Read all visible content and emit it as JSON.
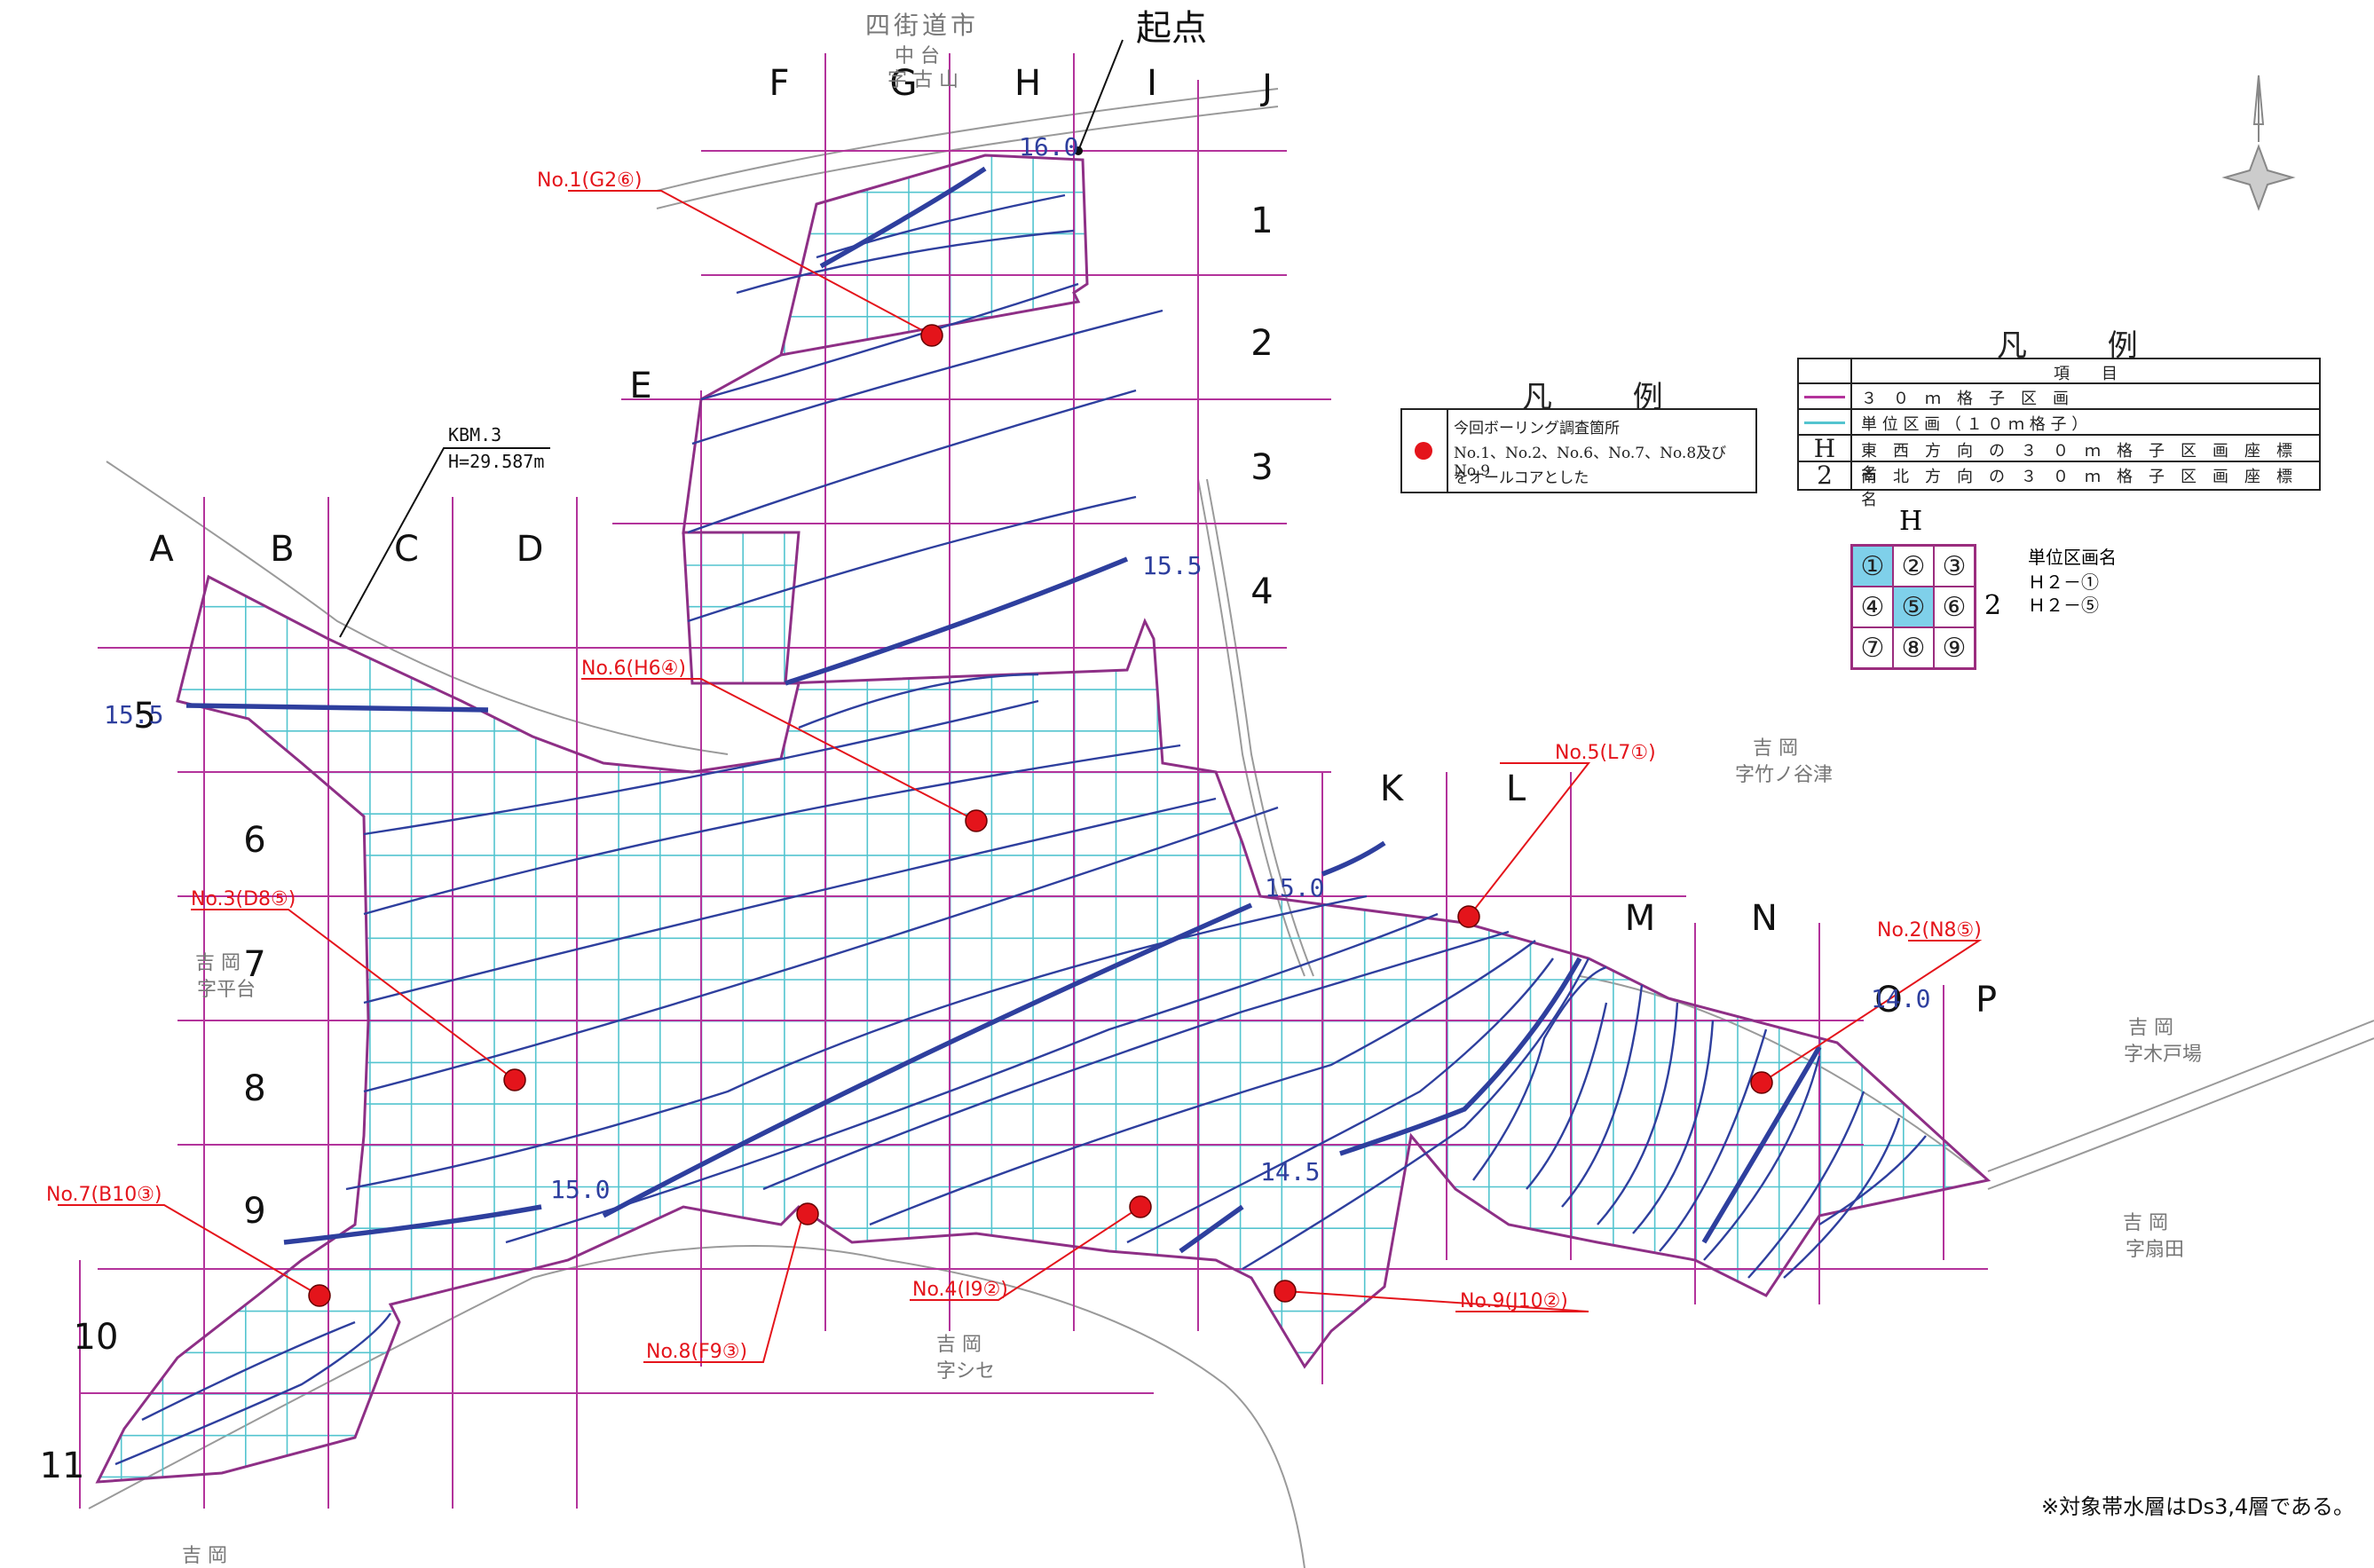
{
  "place_labels": {
    "city_top": "四街道市",
    "naka": "中 台",
    "furu": "字 古 山",
    "yoshioka1": "吉 岡",
    "takenoyatsu": "字竹ノ谷津",
    "yoshioka2": "吉 岡",
    "hiradai": "字平台",
    "yoshioka3": "吉 岡",
    "kidoba": "字木戸場",
    "yoshioka4": "吉 岡",
    "ougita": "字扇田",
    "yoshioka5": "吉 岡",
    "shise": "字シセ",
    "yoshioka6": "吉 岡"
  },
  "start_label": "起点",
  "benchmark": {
    "name": "KBM.3",
    "height": "H=29.587m"
  },
  "col_labels": [
    "A",
    "B",
    "C",
    "D",
    "E",
    "F",
    "G",
    "H",
    "I",
    "J",
    "K",
    "L",
    "M",
    "N",
    "O",
    "P"
  ],
  "row_labels": [
    "1",
    "2",
    "3",
    "4",
    "5",
    "6",
    "7",
    "8",
    "9",
    "10",
    "11"
  ],
  "contours": [
    "16.0",
    "15.5",
    "15.5",
    "15.0",
    "15.0",
    "14.5",
    "14.0"
  ],
  "borings": [
    {
      "label": "No.1(G2⑥)"
    },
    {
      "label": "No.2(N8⑤)"
    },
    {
      "label": "No.3(D8⑤)"
    },
    {
      "label": "No.4(I9②)"
    },
    {
      "label": "No.5(L7①)"
    },
    {
      "label": "No.6(H6④)"
    },
    {
      "label": "No.7(B10③)"
    },
    {
      "label": "No.8(F9③)"
    },
    {
      "label": "No.9(J10②)"
    }
  ],
  "legend1": {
    "title": "凡 例",
    "line1": "今回ボーリング調査箇所",
    "line2": "No.1、No.2、No.6、No.7、No.8及びNo.9",
    "line3": "をオールコアとした"
  },
  "legend2": {
    "title": "凡 例",
    "header": "項　　目",
    "row1": "３　０　ｍ　格　子　区　画",
    "row2": "単 位 区 画 （ １ ０ ｍ 格 子 ）",
    "row3_key": "H",
    "row3": "東　西　方　向　の　３　０　ｍ　格　子　区　画　座　標　名",
    "row4_key": "2",
    "row4": "南　北　方　向　の　３　０　ｍ　格　子　区　画　座　標　名"
  },
  "unit_example": {
    "col": "H",
    "row": "2",
    "cells": [
      "①",
      "②",
      "③",
      "④",
      "⑤",
      "⑥",
      "⑦",
      "⑧",
      "⑨"
    ],
    "title": "単位区画名",
    "ex1": "Ｈ２－①",
    "ex2": "Ｈ２－⑤"
  },
  "footnote": "※対象帯水層はDs3,4層である。",
  "colors": {
    "grid30": "#b3339b",
    "grid10": "#53c4cf",
    "contour": "#2e3f9e",
    "boring": "#e4141b",
    "label_red": "#e4141b",
    "boundary": "#8e2f86"
  }
}
